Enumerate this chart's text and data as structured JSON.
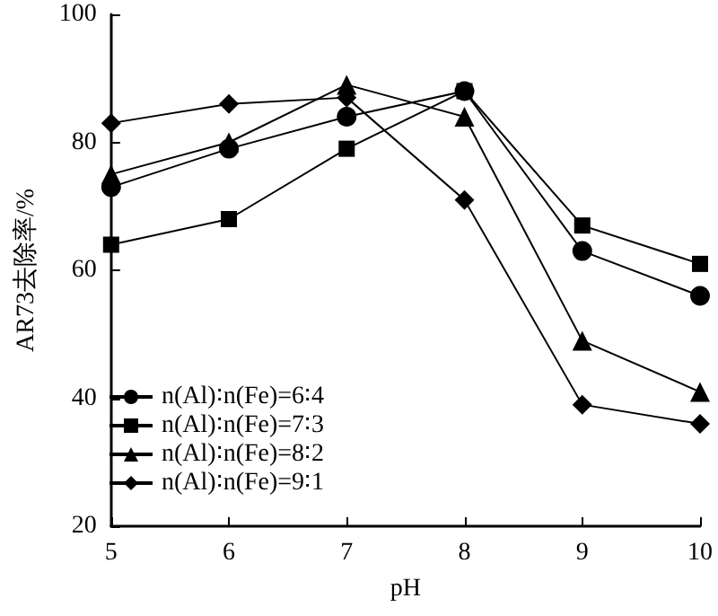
{
  "chart_data": {
    "type": "line",
    "xlabel": "pH",
    "ylabel": "AR73去除率/%",
    "x": [
      5,
      6,
      7,
      8,
      9,
      10
    ],
    "series": [
      {
        "name": "n(Al)∶n(Fe)=6∶4",
        "color": "#000000",
        "marker": "circle",
        "values": [
          73,
          79,
          84,
          88,
          63,
          56
        ]
      },
      {
        "name": "n(Al)∶n(Fe)=7∶3",
        "color": "#000000",
        "marker": "square",
        "values": [
          64,
          68,
          79,
          88,
          67,
          61
        ]
      },
      {
        "name": "n(Al)∶n(Fe)=8∶2",
        "color": "#000000",
        "marker": "triangle",
        "values": [
          75,
          80,
          89,
          84,
          49,
          41
        ]
      },
      {
        "name": "n(Al)∶n(Fe)=9∶1",
        "color": "#000000",
        "marker": "diamond",
        "values": [
          83,
          86,
          87,
          71,
          39,
          36
        ]
      }
    ],
    "xlim": [
      5,
      10
    ],
    "xticks": [
      5,
      6,
      7,
      8,
      9,
      10
    ],
    "ylim": [
      20,
      100
    ],
    "yticks": [
      20,
      40,
      60,
      80,
      100
    ],
    "grid": false,
    "legend": "bottom left",
    "line_style": "solid"
  }
}
